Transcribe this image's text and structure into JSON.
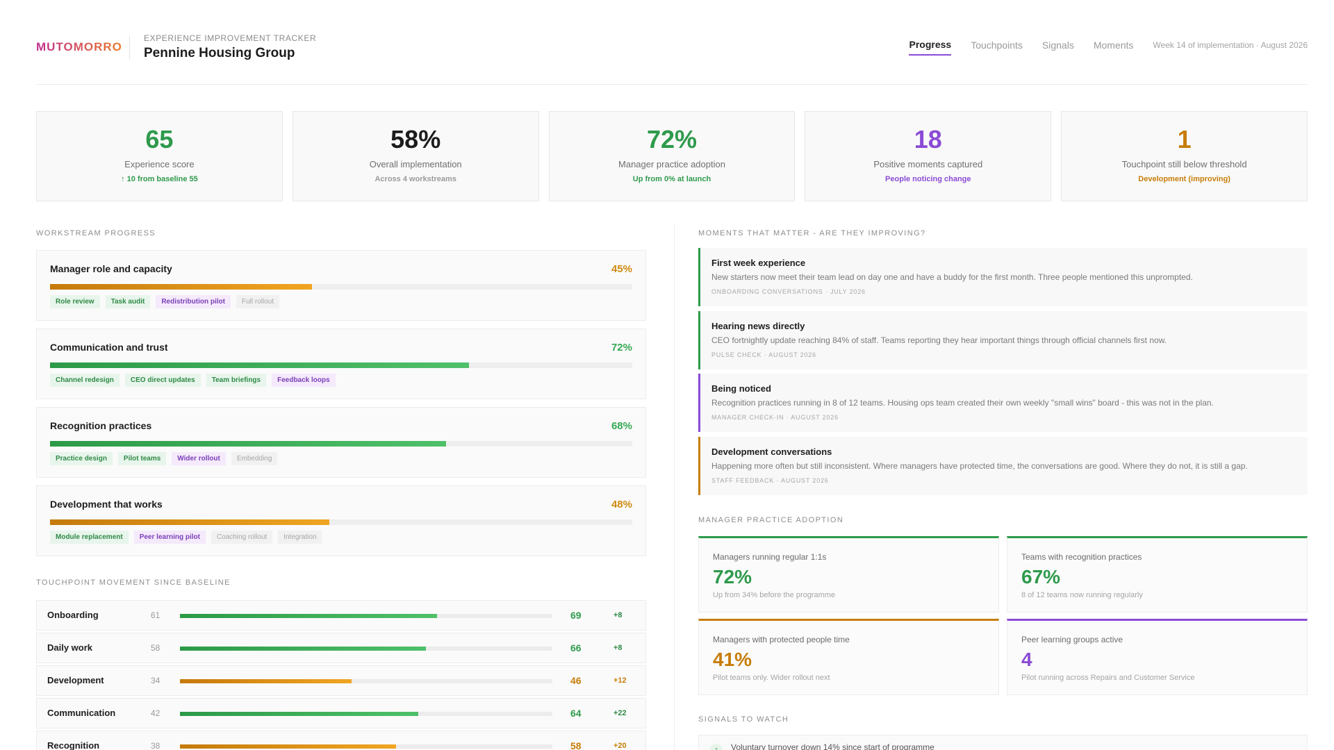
{
  "header": {
    "brand": "MUTOMORRO",
    "eyebrow": "EXPERIENCE IMPROVEMENT TRACKER",
    "org": "Pennine Housing Group",
    "tabs": [
      "Progress",
      "Touchpoints",
      "Signals",
      "Moments"
    ],
    "meta": "Week 14 of implementation · August 2026"
  },
  "kpis": [
    {
      "value": "65",
      "label": "Experience score",
      "note": "↑ 10 from baseline 55",
      "color": "#2e9a4c",
      "note_color": "#2e9a4c"
    },
    {
      "value": "58%",
      "label": "Overall implementation",
      "note": "Across 4 workstreams",
      "color": "#1c1c1c",
      "note_color": "#9a9a9a"
    },
    {
      "value": "72%",
      "label": "Manager practice adoption",
      "note": "Up from 0% at launch",
      "color": "#2e9a4c",
      "note_color": "#2e9a4c"
    },
    {
      "value": "18",
      "label": "Positive moments captured",
      "note": "People noticing change",
      "color": "#8a4bd6",
      "note_color": "#8a4bd6"
    },
    {
      "value": "1",
      "label": "Touchpoint still below threshold",
      "note": "Development (improving)",
      "color": "#c77d0a",
      "note_color": "#c77d0a"
    }
  ],
  "sections": {
    "workstreams": "WORKSTREAM PROGRESS",
    "touchpoints": "TOUCHPOINT MOVEMENT SINCE BASELINE",
    "moments": "MOMENTS THAT MATTER - ARE THEY IMPROVING?",
    "practice": "MANAGER PRACTICE ADOPTION",
    "signals": "SIGNALS TO WATCH"
  },
  "workstreams": [
    {
      "name": "Manager role and capacity",
      "pct_label": "45%",
      "progress": 0.45,
      "color": "#d08a10",
      "tags": [
        {
          "label": "Role review",
          "state": "done"
        },
        {
          "label": "Task audit",
          "state": "done"
        },
        {
          "label": "Redistribution pilot",
          "state": "active"
        },
        {
          "label": "Full rollout",
          "state": "todo"
        }
      ]
    },
    {
      "name": "Communication and trust",
      "pct_label": "72%",
      "progress": 0.72,
      "color": "#35a853",
      "tags": [
        {
          "label": "Channel redesign",
          "state": "done"
        },
        {
          "label": "CEO direct updates",
          "state": "done"
        },
        {
          "label": "Team briefings",
          "state": "done"
        },
        {
          "label": "Feedback loops",
          "state": "active"
        }
      ]
    },
    {
      "name": "Recognition practices",
      "pct_label": "68%",
      "progress": 0.68,
      "color": "#35a853",
      "tags": [
        {
          "label": "Practice design",
          "state": "done"
        },
        {
          "label": "Pilot teams",
          "state": "done"
        },
        {
          "label": "Wider rollout",
          "state": "active"
        },
        {
          "label": "Embedding",
          "state": "todo"
        }
      ]
    },
    {
      "name": "Development that works",
      "pct_label": "48%",
      "progress": 0.48,
      "color": "#d08a10",
      "tags": [
        {
          "label": "Module replacement",
          "state": "done"
        },
        {
          "label": "Peer learning pilot",
          "state": "active"
        },
        {
          "label": "Coaching rollout",
          "state": "todo"
        },
        {
          "label": "Integration",
          "state": "todo"
        }
      ]
    }
  ],
  "touchpoints": [
    {
      "name": "Onboarding",
      "baseline": "61",
      "current": "69",
      "delta": "+8",
      "value": 69,
      "color": "#35a853"
    },
    {
      "name": "Daily work",
      "baseline": "58",
      "current": "66",
      "delta": "+8",
      "value": 66,
      "color": "#35a853"
    },
    {
      "name": "Development",
      "baseline": "34",
      "current": "46",
      "delta": "+12",
      "value": 46,
      "color": "#d08a10"
    },
    {
      "name": "Communication",
      "baseline": "42",
      "current": "64",
      "delta": "+22",
      "value": 64,
      "color": "#35a853"
    },
    {
      "name": "Recognition",
      "baseline": "38",
      "current": "58",
      "delta": "+20",
      "value": 58,
      "color": "#d08a10"
    }
  ],
  "moments": [
    {
      "title": "First week experience",
      "text": "New starters now meet their team lead on day one and have a buddy for the first month. Three people mentioned this unprompted.",
      "meta": "ONBOARDING CONVERSATIONS · JULY 2026",
      "color": "#2e9a4c"
    },
    {
      "title": "Hearing news directly",
      "text": "CEO fortnightly update reaching 84% of staff. Teams reporting they hear important things through official channels first now.",
      "meta": "PULSE CHECK · AUGUST 2026",
      "color": "#2e9a4c"
    },
    {
      "title": "Being noticed",
      "text": "Recognition practices running in 8 of 12 teams. Housing ops team created their own weekly \"small wins\" board - this was not in the plan.",
      "meta": "MANAGER CHECK-IN · AUGUST 2026",
      "color": "#8a4bd6"
    },
    {
      "title": "Development conversations",
      "text": "Happening more often but still inconsistent. Where managers have protected time, the conversations are good. Where they do not, it is still a gap.",
      "meta": "STAFF FEEDBACK · AUGUST 2026",
      "color": "#c77d0a"
    }
  ],
  "practice": [
    {
      "label": "Managers running regular 1:1s",
      "value": "72%",
      "note": "Up from 34% before the programme",
      "color": "#2e9a4c"
    },
    {
      "label": "Teams with recognition practices",
      "value": "67%",
      "note": "8 of 12 teams now running regularly",
      "color": "#2e9a4c"
    },
    {
      "label": "Managers with protected people time",
      "value": "41%",
      "note": "Pilot teams only. Wider rollout next",
      "color": "#c77d0a"
    },
    {
      "label": "Peer learning groups active",
      "value": "4",
      "note": "Pilot running across Repairs and Customer Service",
      "color": "#8a4bd6"
    }
  ],
  "signals": [
    {
      "text": "Voluntary turnover down 14% since start of programme",
      "icon": "arrow-up-icon",
      "icon_glyph": "↑"
    }
  ]
}
